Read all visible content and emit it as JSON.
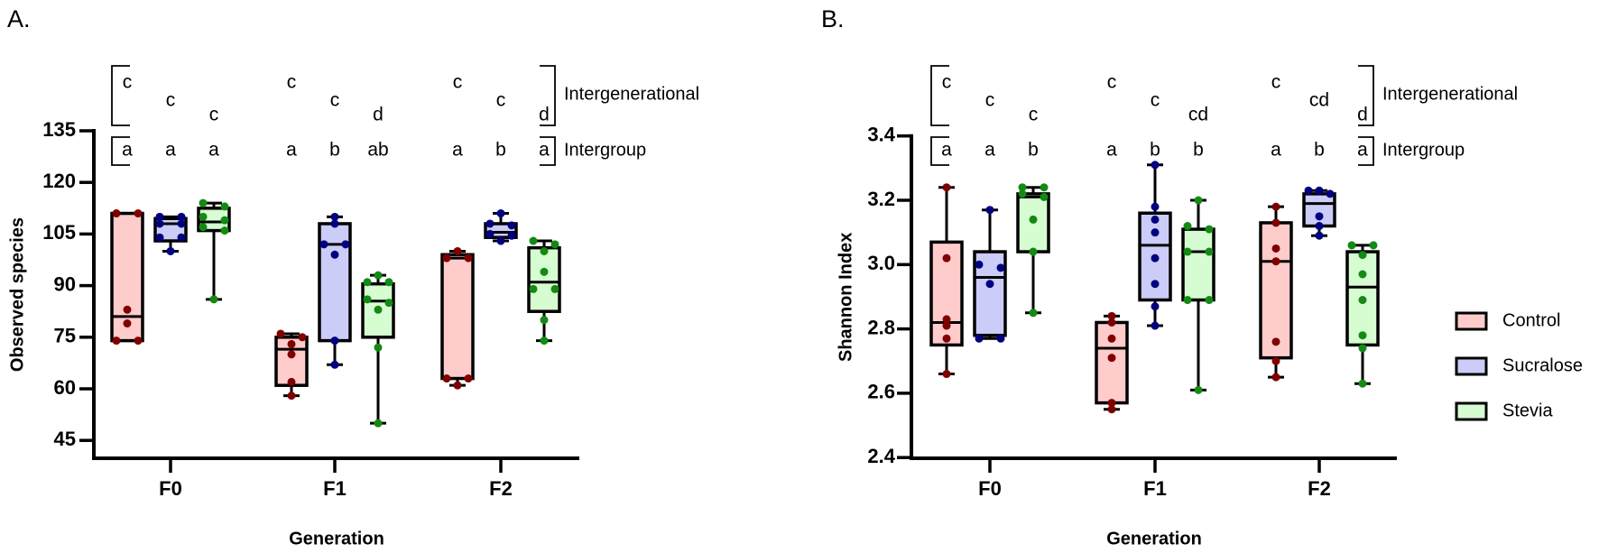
{
  "colors": {
    "Control": {
      "fill": "#ffcccc",
      "dot": "#800000"
    },
    "Sucralose": {
      "fill": "#ccccf8",
      "dot": "#000080"
    },
    "Stevia": {
      "fill": "#d6fcd2",
      "dot": "#138a13"
    },
    "box_stroke": "#000000"
  },
  "legend": {
    "placement": "right",
    "entries": [
      "Control",
      "Sucralose",
      "Stevia"
    ]
  },
  "chart_data": [
    {
      "panel": "A.",
      "type": "box",
      "xlabel": "Generation",
      "ylabel": "Observed species",
      "categories": [
        "F0",
        "F1",
        "F2"
      ],
      "yticks": [
        135,
        120,
        105,
        90,
        75,
        60,
        45
      ],
      "ylim": [
        45,
        135
      ],
      "bracket_labels": {
        "intergenerational": "Intergenerational",
        "intergroup": "Intergroup"
      },
      "series": [
        {
          "name": "Control",
          "boxes": [
            {
              "min": 74,
              "q1": 74,
              "median": 81,
              "q3": 111,
              "max": 111,
              "points": [
                111,
                111,
                83,
                79,
                74,
                74
              ],
              "intergenerational": "c",
              "intergroup": "a"
            },
            {
              "min": 58,
              "q1": 61,
              "median": 71.5,
              "q3": 75,
              "max": 76,
              "points": [
                76,
                75,
                73,
                70,
                62,
                58
              ],
              "intergenerational": "c",
              "intergroup": "a"
            },
            {
              "min": 61,
              "q1": 63,
              "median": 98,
              "q3": 99,
              "max": 100,
              "points": [
                100,
                98,
                98,
                63,
                63,
                61
              ],
              "intergenerational": "c",
              "intergroup": "a"
            }
          ]
        },
        {
          "name": "Sucralose",
          "boxes": [
            {
              "min": 100,
              "q1": 103,
              "median": 108,
              "q3": 109.5,
              "max": 110,
              "points": [
                110,
                110,
                108,
                108,
                104,
                104,
                100
              ],
              "intergenerational": "c",
              "intergroup": "a"
            },
            {
              "min": 67,
              "q1": 74,
              "median": 102,
              "q3": 108,
              "max": 110,
              "points": [
                110,
                108,
                102,
                102,
                99,
                74,
                67
              ],
              "intergenerational": "c",
              "intergroup": "b"
            },
            {
              "min": 103,
              "q1": 104,
              "median": 105.5,
              "q3": 108,
              "max": 111,
              "points": [
                111,
                108,
                107.5,
                105,
                104.5,
                103
              ],
              "intergenerational": "c",
              "intergroup": "b"
            }
          ]
        },
        {
          "name": "Stevia",
          "boxes": [
            {
              "min": 86,
              "q1": 106,
              "median": 108.5,
              "q3": 112.5,
              "max": 114,
              "points": [
                114,
                113,
                110,
                109,
                107,
                106,
                86
              ],
              "intergenerational": "c",
              "intergroup": "a"
            },
            {
              "min": 50,
              "q1": 75,
              "median": 85.5,
              "q3": 90.5,
              "max": 93,
              "points": [
                93,
                91,
                91,
                86,
                85,
                83,
                72,
                50
              ],
              "intergenerational": "d",
              "intergroup": "ab"
            },
            {
              "min": 74,
              "q1": 82.5,
              "median": 91,
              "q3": 101,
              "max": 103,
              "points": [
                103,
                102,
                100,
                94,
                89,
                89,
                80,
                74
              ],
              "intergenerational": "d",
              "intergroup": "a"
            }
          ]
        }
      ]
    },
    {
      "panel": "B.",
      "type": "box",
      "xlabel": "Generation",
      "ylabel": "Shannon Index",
      "categories": [
        "F0",
        "F1",
        "F2"
      ],
      "yticks": [
        3.4,
        3.2,
        3.0,
        2.8,
        2.6,
        2.4
      ],
      "ylim": [
        2.4,
        3.4
      ],
      "bracket_labels": {
        "intergenerational": "Intergenerational",
        "intergroup": "Intergroup"
      },
      "series": [
        {
          "name": "Control",
          "boxes": [
            {
              "min": 2.66,
              "q1": 2.75,
              "median": 2.82,
              "q3": 3.07,
              "max": 3.24,
              "points": [
                3.24,
                3.02,
                2.83,
                2.81,
                2.77,
                2.66
              ],
              "intergenerational": "c",
              "intergroup": "a"
            },
            {
              "min": 2.55,
              "q1": 2.57,
              "median": 2.74,
              "q3": 2.82,
              "max": 2.84,
              "points": [
                2.84,
                2.82,
                2.77,
                2.71,
                2.57,
                2.55
              ],
              "intergenerational": "c",
              "intergroup": "a"
            },
            {
              "min": 2.65,
              "q1": 2.71,
              "median": 3.01,
              "q3": 3.13,
              "max": 3.18,
              "points": [
                3.18,
                3.13,
                3.05,
                3.01,
                2.76,
                2.7,
                2.65
              ],
              "intergenerational": "c",
              "intergroup": "a"
            }
          ]
        },
        {
          "name": "Sucralose",
          "boxes": [
            {
              "min": 2.77,
              "q1": 2.78,
              "median": 2.96,
              "q3": 3.04,
              "max": 3.17,
              "points": [
                3.17,
                3.0,
                2.99,
                2.94,
                2.77,
                2.77
              ],
              "intergenerational": "c",
              "intergroup": "a"
            },
            {
              "min": 2.81,
              "q1": 2.89,
              "median": 3.06,
              "q3": 3.16,
              "max": 3.31,
              "points": [
                3.31,
                3.18,
                3.14,
                3.1,
                3.02,
                2.94,
                2.87,
                2.81
              ],
              "intergenerational": "c",
              "intergroup": "b"
            },
            {
              "min": 3.09,
              "q1": 3.12,
              "median": 3.19,
              "q3": 3.22,
              "max": 3.23,
              "points": [
                3.23,
                3.23,
                3.22,
                3.15,
                3.12,
                3.09
              ],
              "intergenerational": "cd",
              "intergroup": "b"
            }
          ]
        },
        {
          "name": "Stevia",
          "boxes": [
            {
              "min": 2.85,
              "q1": 3.04,
              "median": 3.21,
              "q3": 3.22,
              "max": 3.24,
              "points": [
                3.24,
                3.24,
                3.22,
                3.21,
                3.14,
                3.04,
                2.85
              ],
              "intergenerational": "c",
              "intergroup": "b"
            },
            {
              "min": 2.61,
              "q1": 2.89,
              "median": 3.04,
              "q3": 3.11,
              "max": 3.2,
              "points": [
                3.2,
                3.12,
                3.11,
                3.04,
                3.04,
                2.89,
                2.89,
                2.61
              ],
              "intergenerational": "cd",
              "intergroup": "b"
            },
            {
              "min": 2.63,
              "q1": 2.75,
              "median": 2.93,
              "q3": 3.04,
              "max": 3.06,
              "points": [
                3.06,
                3.06,
                3.03,
                2.97,
                2.89,
                2.78,
                2.74,
                2.63
              ],
              "intergenerational": "d",
              "intergroup": "a"
            }
          ]
        }
      ]
    }
  ]
}
